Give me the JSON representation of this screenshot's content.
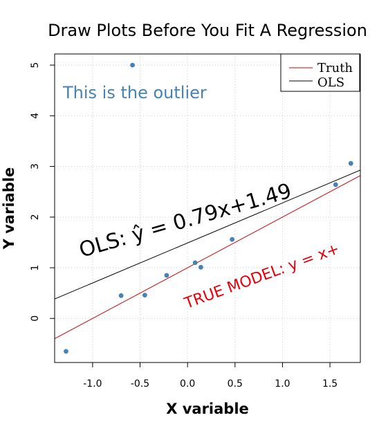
{
  "chart_data": {
    "type": "scatter",
    "title": "Draw Plots Before You Fit A Regression",
    "xlabel": "X variable",
    "ylabel": "Y variable",
    "xlim": [
      -1.4,
      1.82
    ],
    "ylim": [
      -0.87,
      5.22
    ],
    "xticks": [
      -1.0,
      -0.5,
      0.0,
      0.5,
      1.0,
      1.5
    ],
    "xtick_labels": [
      "-1.0",
      "-0.5",
      "0.0",
      "0.5",
      "1.0",
      "1.5"
    ],
    "yticks": [
      0,
      1,
      2,
      3,
      4,
      5
    ],
    "ytick_labels": [
      "0",
      "1",
      "2",
      "3",
      "4",
      "5"
    ],
    "grid": true,
    "points": [
      {
        "x": -1.28,
        "y": -0.65
      },
      {
        "x": -0.7,
        "y": 0.45
      },
      {
        "x": -0.58,
        "y": 5.0
      },
      {
        "x": -0.45,
        "y": 0.46
      },
      {
        "x": -0.22,
        "y": 0.85
      },
      {
        "x": 0.08,
        "y": 1.1
      },
      {
        "x": 0.14,
        "y": 1.01
      },
      {
        "x": 0.47,
        "y": 1.56
      },
      {
        "x": 1.56,
        "y": 2.64
      },
      {
        "x": 1.72,
        "y": 3.06
      }
    ],
    "point_color": "#4682b4",
    "series": [
      {
        "name": "Truth",
        "slope": 1.0,
        "intercept": 1.0,
        "color": "#d40000"
      },
      {
        "name": "OLS",
        "slope": 0.79,
        "intercept": 1.49,
        "color": "#000000"
      }
    ],
    "legend_position": "top-right",
    "annotations": {
      "outlier": {
        "text": "This is the outlier",
        "color": "#4682b4"
      },
      "ols": {
        "text": "OLS: ŷ = 0.79x+1.49",
        "color": "#000000"
      },
      "truth": {
        "text": "TRUE MODEL: y = x+",
        "color": "#e8000b"
      }
    }
  }
}
